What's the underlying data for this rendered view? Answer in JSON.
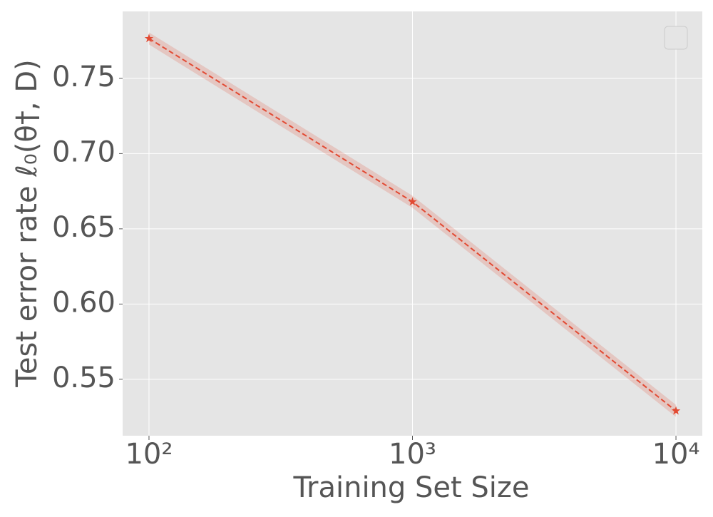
{
  "chart_data": {
    "type": "line",
    "x_label": "Training Set Size",
    "y_label": "Test error rate ℓ₀(θ†, D)",
    "x": [
      100,
      1000,
      10000
    ],
    "series": [
      {
        "color": "#e24a33",
        "values": [
          0.7765,
          0.668,
          0.529
        ],
        "lower": [
          0.7725,
          0.664,
          0.525
        ],
        "upper": [
          0.7805,
          0.672,
          0.533
        ]
      }
    ],
    "xlog": true,
    "xlim": [
      79.43,
      12589.25
    ],
    "xticks": [
      {
        "value": 100,
        "label": "10²"
      },
      {
        "value": 1000,
        "label": "10³"
      },
      {
        "value": 10000,
        "label": "10⁴"
      }
    ],
    "ylim": [
      0.5125,
      0.7945
    ],
    "yticks": [
      0.55,
      {
        "value": 0.6,
        "label": "0.60"
      },
      0.65,
      {
        "value": 0.7,
        "label": "0.70"
      },
      0.75
    ],
    "grid": true,
    "legend": "upper right"
  }
}
